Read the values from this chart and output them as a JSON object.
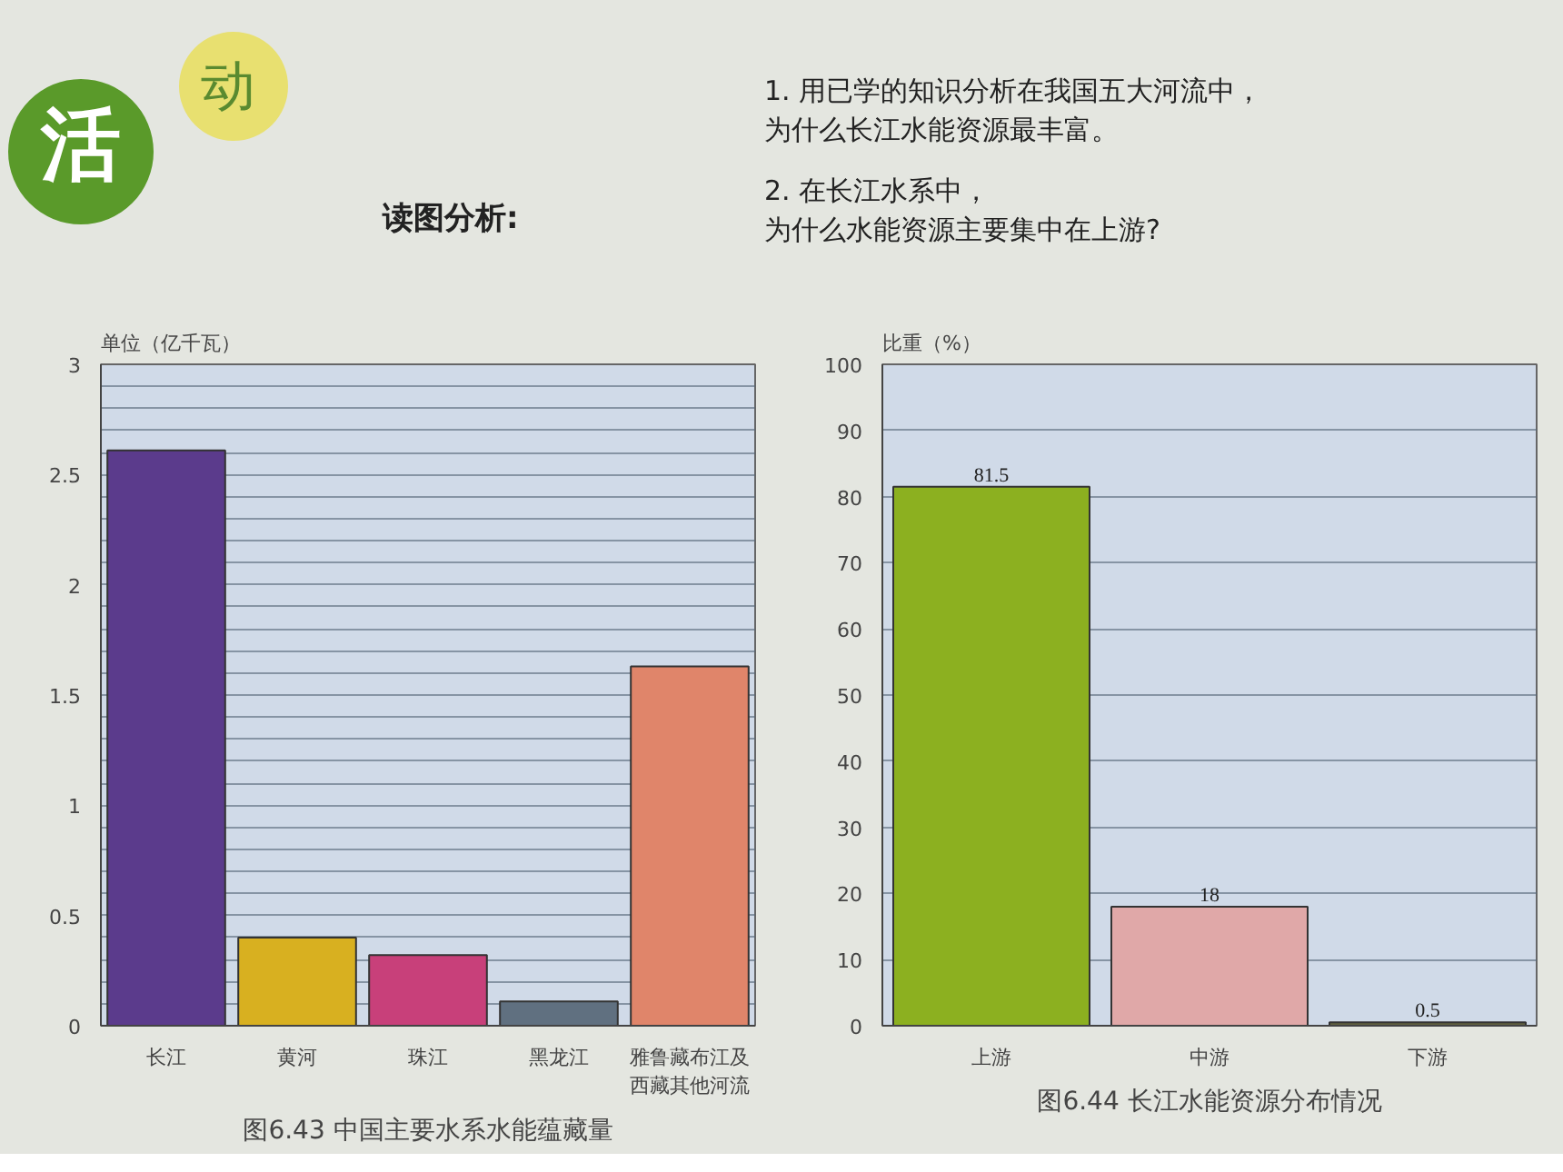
{
  "chart_data": [
    {
      "type": "bar",
      "title": "图6.43 中国主要水系水能蕴藏量",
      "ylabel": "单位（亿千瓦）",
      "annotations": [
        "活",
        "动",
        "读图分析:",
        "1. 用已学的知识分析在我国五大河流中，为什么长江水能资源最丰富。",
        "2. 在长江水系中，为什么水能资源主要集中在上游?"
      ],
      "categories": [
        "长江",
        "黄河",
        "珠江",
        "黑龙江",
        "雅鲁藏布江及西藏其他河流"
      ],
      "values": [
        2.61,
        0.4,
        0.32,
        0.11,
        1.63
      ],
      "colors": [
        "#5b3b8c",
        "#d8b020",
        "#c8407a",
        "#607080",
        "#e0856a"
      ],
      "ylim": [
        0,
        3
      ],
      "yticks": [
        0,
        {
          "value": 0.1,
          "label": null
        },
        {
          "value": 0.2,
          "label": null
        },
        {
          "value": 0.3,
          "label": null
        },
        {
          "value": 0.4,
          "label": null
        },
        0.5,
        {
          "value": 0.6,
          "label": null
        },
        {
          "value": 0.7,
          "label": null
        },
        {
          "value": 0.8,
          "label": null
        },
        {
          "value": 0.9,
          "label": null
        },
        1,
        {
          "value": 1.1,
          "label": null
        },
        {
          "value": 1.2,
          "label": null
        },
        {
          "value": 1.3,
          "label": null
        },
        {
          "value": 1.4,
          "label": null
        },
        1.5,
        {
          "value": 1.6,
          "label": null
        },
        {
          "value": 1.7,
          "label": null
        },
        {
          "value": 1.8,
          "label": null
        },
        {
          "value": 1.9,
          "label": null
        },
        2,
        {
          "value": 2.1,
          "label": null
        },
        {
          "value": 2.2,
          "label": null
        },
        {
          "value": 2.3,
          "label": null
        },
        {
          "value": 2.4,
          "label": null
        },
        2.5,
        {
          "value": 2.6,
          "label": null
        },
        {
          "value": 2.7,
          "label": null
        },
        {
          "value": 2.8,
          "label": null
        },
        {
          "value": 2.9,
          "label": null
        },
        3
      ],
      "grid": "y"
    },
    {
      "type": "bar",
      "title": "图6.44 长江水能资源分布情况",
      "ylabel": "比重（%）",
      "categories": [
        "上游",
        "中游",
        "下游"
      ],
      "values": [
        81.5,
        18,
        0.5
      ],
      "colors": [
        "#8cb020",
        "#e0a8a8",
        "#606040"
      ],
      "ylim": [
        0,
        100
      ],
      "yticks": [
        0,
        10,
        20,
        30,
        40,
        50,
        60,
        70,
        80,
        90,
        100
      ],
      "grid": "y",
      "data_labels": true
    }
  ]
}
